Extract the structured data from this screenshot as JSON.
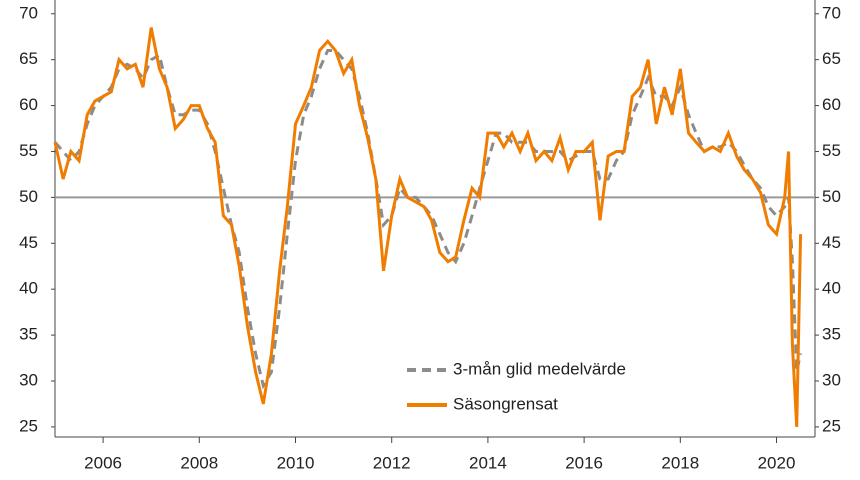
{
  "chart_data": {
    "type": "line",
    "x": [
      2005,
      2005.17,
      2005.33,
      2005.5,
      2005.67,
      2005.83,
      2006,
      2006.17,
      2006.33,
      2006.5,
      2006.67,
      2006.83,
      2007,
      2007.17,
      2007.33,
      2007.5,
      2007.67,
      2007.83,
      2008,
      2008.17,
      2008.33,
      2008.5,
      2008.67,
      2008.83,
      2009,
      2009.17,
      2009.33,
      2009.5,
      2009.67,
      2009.83,
      2010,
      2010.17,
      2010.33,
      2010.5,
      2010.67,
      2010.83,
      2011,
      2011.17,
      2011.33,
      2011.5,
      2011.67,
      2011.83,
      2012,
      2012.17,
      2012.33,
      2012.5,
      2012.67,
      2012.83,
      2013,
      2013.17,
      2013.33,
      2013.5,
      2013.67,
      2013.83,
      2014,
      2014.17,
      2014.33,
      2014.5,
      2014.67,
      2014.83,
      2015,
      2015.17,
      2015.33,
      2015.5,
      2015.67,
      2015.83,
      2016,
      2016.17,
      2016.33,
      2016.5,
      2016.67,
      2016.83,
      2017,
      2017.17,
      2017.33,
      2017.5,
      2017.67,
      2017.83,
      2018,
      2018.17,
      2018.33,
      2018.5,
      2018.67,
      2018.83,
      2019,
      2019.17,
      2019.33,
      2019.5,
      2019.67,
      2019.83,
      2020,
      2020.17,
      2020.25,
      2020.33,
      2020.42,
      2020.5
    ],
    "series": [
      {
        "name": "3-mån glid medelvärde",
        "color": "#8c8c8c",
        "dash": true,
        "values": [
          56,
          55,
          54,
          55,
          58,
          60,
          61,
          62,
          64,
          64.5,
          64,
          63,
          65,
          65.5,
          62,
          59,
          59,
          59.5,
          59.5,
          58,
          55,
          51,
          47,
          44,
          38,
          33,
          29.5,
          31,
          38,
          46,
          54,
          59,
          61,
          64,
          66,
          66,
          65,
          64,
          61,
          57,
          52,
          47,
          48,
          51,
          50,
          50,
          49,
          48,
          46,
          44,
          43,
          45,
          48,
          51,
          54,
          57,
          57,
          56,
          56,
          56,
          55,
          55,
          55,
          55,
          54,
          54.5,
          55,
          55,
          52,
          52,
          54,
          55,
          59,
          61,
          63,
          61,
          61,
          60,
          62,
          59,
          57,
          55,
          55.5,
          55.5,
          56,
          55,
          53.5,
          52,
          51,
          49,
          48,
          49,
          50,
          43,
          31,
          33
        ]
      },
      {
        "name": "Säsongrensat",
        "color": "#f07d00",
        "dash": false,
        "values": [
          56,
          52,
          55,
          54,
          59,
          60.5,
          61,
          61.5,
          65,
          64,
          64.5,
          62,
          68.5,
          64,
          62,
          57.5,
          58.5,
          60,
          60,
          57.5,
          56,
          48,
          47,
          42.5,
          36,
          31,
          27.5,
          33,
          42,
          49,
          58,
          60,
          62,
          66,
          67,
          66,
          63.5,
          65,
          60,
          56.5,
          52,
          42,
          48,
          52,
          50,
          49.5,
          49,
          47.5,
          44,
          43,
          43.5,
          47.5,
          51,
          50,
          57,
          57,
          55.5,
          57,
          55,
          57,
          54,
          55,
          54,
          56.5,
          53,
          55,
          55,
          56,
          47.5,
          54.5,
          55,
          55,
          61,
          62,
          65,
          58,
          62,
          59,
          64,
          57,
          56,
          55,
          55.5,
          55,
          57,
          54.5,
          53,
          52,
          50.5,
          47,
          46,
          50,
          55,
          34,
          25,
          46
        ]
      }
    ],
    "xlim": [
      2005,
      2020.8
    ],
    "xticks": [
      2006,
      2008,
      2010,
      2012,
      2014,
      2016,
      2018,
      2020
    ],
    "ylim": [
      23.9,
      71.5
    ],
    "yticks": [
      25,
      30,
      35,
      40,
      45,
      50,
      55,
      60,
      65,
      70
    ],
    "y2lim": [
      23.9,
      71.5
    ],
    "y2ticks": [
      25,
      30,
      35,
      40,
      45,
      50,
      55,
      60,
      65,
      70
    ],
    "hline": 50
  }
}
